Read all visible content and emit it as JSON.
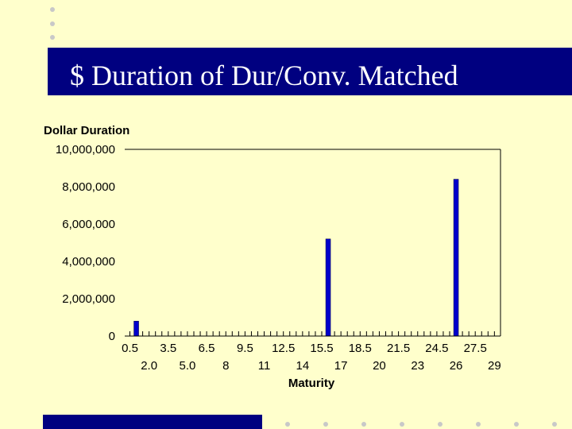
{
  "slide": {
    "title": "$ Duration of Dur/Conv. Matched",
    "accent_color": "#000080",
    "background_color": "#ffffcc",
    "bullet_color": "#c8c8c8"
  },
  "chart_data": {
    "type": "bar",
    "ylabel": "Dollar Duration",
    "xlabel": "Maturity",
    "ylim": [
      0,
      10000000
    ],
    "y_ticks": [
      "0",
      "2,000,000",
      "4,000,000",
      "6,000,000",
      "8,000,000",
      "10,000,000"
    ],
    "x_tick_labels_row1": [
      "0.5",
      "3.5",
      "6.5",
      "9.5",
      "12.5",
      "15.5",
      "18.5",
      "21.5",
      "24.5",
      "27.5"
    ],
    "x_tick_labels_row2": [
      "2.0",
      "5.0",
      "8",
      "11",
      "14",
      "17",
      "20",
      "23",
      "26",
      "29"
    ],
    "categories": [
      "0.5",
      "1.0",
      "1.5",
      "2.0",
      "2.5",
      "3.0",
      "3.5",
      "4.0",
      "4.5",
      "5.0",
      "5.5",
      "6.0",
      "6.5",
      "7.0",
      "7.5",
      "8",
      "8.5",
      "9.0",
      "9.5",
      "10.0",
      "10.5",
      "11",
      "11.5",
      "12.0",
      "12.5",
      "13.0",
      "13.5",
      "14",
      "14.5",
      "15.0",
      "15.5",
      "16.0",
      "16.5",
      "17",
      "17.5",
      "18.0",
      "18.5",
      "19.0",
      "19.5",
      "20",
      "20.5",
      "21.0",
      "21.5",
      "22.0",
      "22.5",
      "23",
      "23.5",
      "24.0",
      "24.5",
      "25.0",
      "25.5",
      "26",
      "26.5",
      "27.0",
      "27.5",
      "28.0",
      "28.5",
      "29",
      "29.5",
      "30.0"
    ],
    "values": [
      0,
      800000,
      0,
      0,
      0,
      0,
      0,
      0,
      0,
      0,
      0,
      0,
      0,
      0,
      0,
      0,
      0,
      0,
      0,
      0,
      0,
      0,
      0,
      0,
      0,
      0,
      0,
      0,
      0,
      0,
      0,
      5200000,
      0,
      0,
      0,
      0,
      0,
      0,
      0,
      0,
      0,
      0,
      0,
      0,
      0,
      0,
      0,
      0,
      0,
      0,
      0,
      8400000,
      0,
      0,
      0,
      0,
      0,
      0,
      0,
      0
    ],
    "bar_color": "#0000cc",
    "grid": false,
    "legend": "none"
  }
}
